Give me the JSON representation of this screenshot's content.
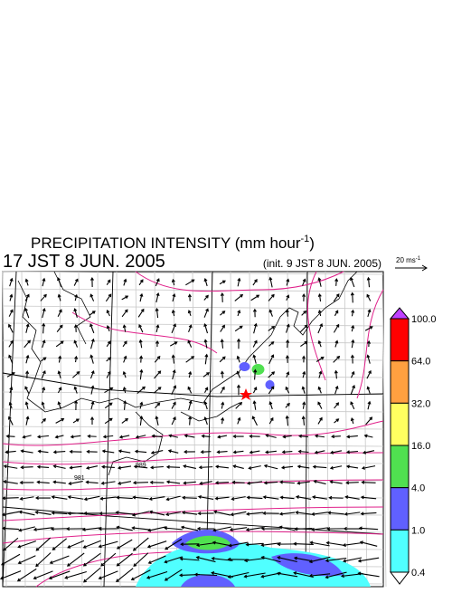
{
  "header": {
    "title": "PRECIPITATION INTENSITY (mm hour",
    "title_sup": "-1",
    "title_end": ")",
    "time": "17 JST 8 JUN. 2005",
    "init": "(init. 9 JST 8 JUN. 2005)"
  },
  "vector_scale": {
    "label": "20 ms",
    "sup": "-1"
  },
  "isobar_labels": [
    "989",
    "981"
  ],
  "colorbar": {
    "labels": [
      "100.0",
      "64.0",
      "32.0",
      "16.0",
      "4.0",
      "1.0",
      "0.4"
    ],
    "colors": [
      "#ff0000",
      "#ffa040",
      "#ffff60",
      "#50e050",
      "#6060ff",
      "#50ffff"
    ],
    "over_color": "#c040ff",
    "under_color": "#ffffff"
  }
}
